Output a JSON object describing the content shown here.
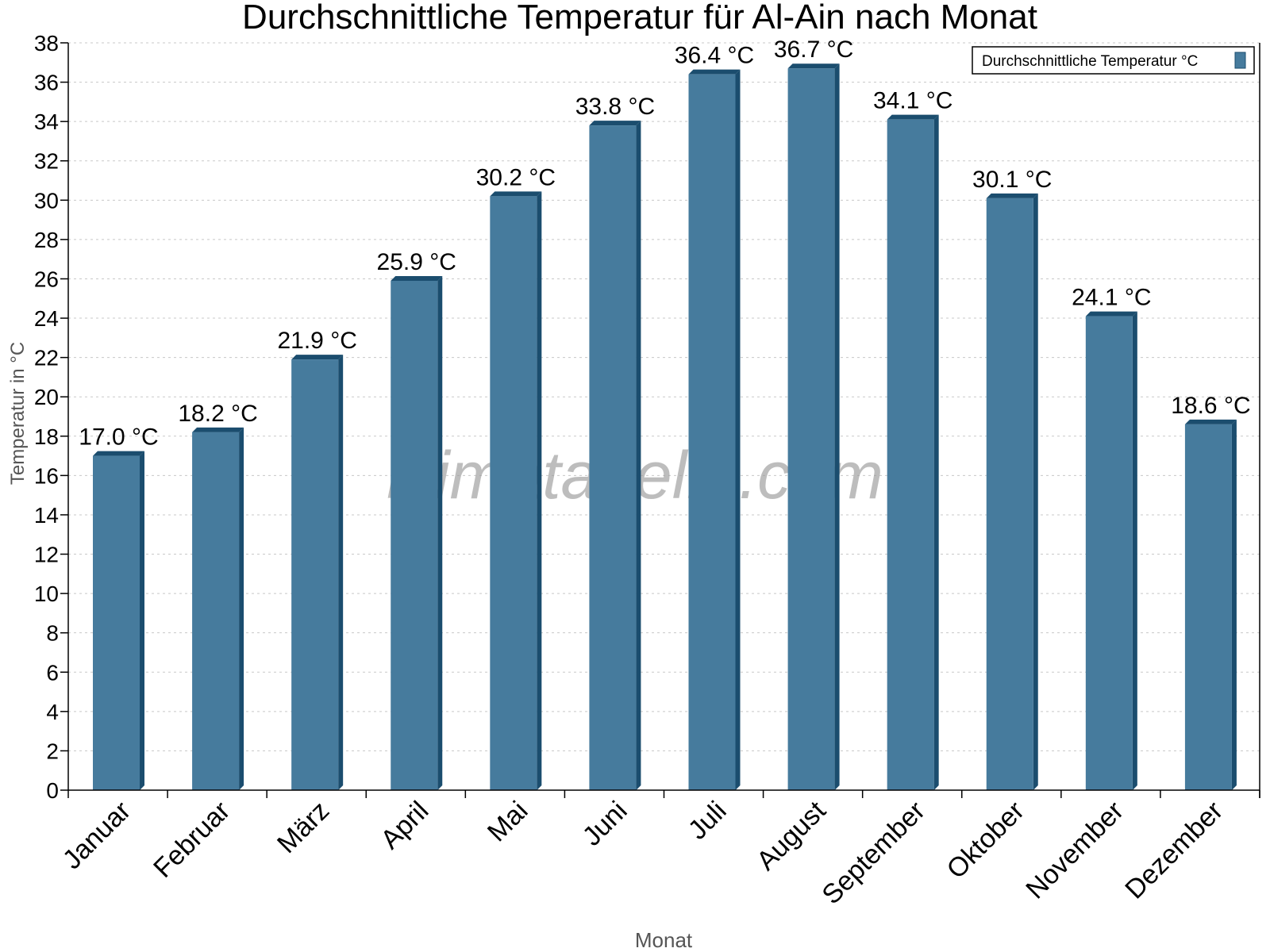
{
  "chart_data": {
    "type": "bar",
    "title": "Durchschnittliche Temperatur für Al-Ain nach Monat",
    "xlabel": "Monat",
    "ylabel": "Temperatur in °C",
    "ylim": [
      0,
      38
    ],
    "ytick_step": 2,
    "grid": true,
    "legend_placement": "top-right",
    "watermark": "klimatabelle.com",
    "categories": [
      "Januar",
      "Februar",
      "März",
      "April",
      "Mai",
      "Juni",
      "Juli",
      "August",
      "September",
      "Oktober",
      "November",
      "Dezember"
    ],
    "series": [
      {
        "name": "Durchschnittliche Temperatur °C",
        "color": "#467b9d",
        "side_color": "#1b4d6e",
        "values": [
          17.0,
          18.2,
          21.9,
          25.9,
          30.2,
          33.8,
          36.4,
          36.7,
          34.1,
          30.1,
          24.1,
          18.6
        ],
        "labels": [
          "17.0 °C",
          "18.2 °C",
          "21.9 °C",
          "25.9 °C",
          "30.2 °C",
          "33.8 °C",
          "36.4 °C",
          "36.7 °C",
          "34.1 °C",
          "30.1 °C",
          "24.1 °C",
          "18.6 °C"
        ]
      }
    ]
  }
}
